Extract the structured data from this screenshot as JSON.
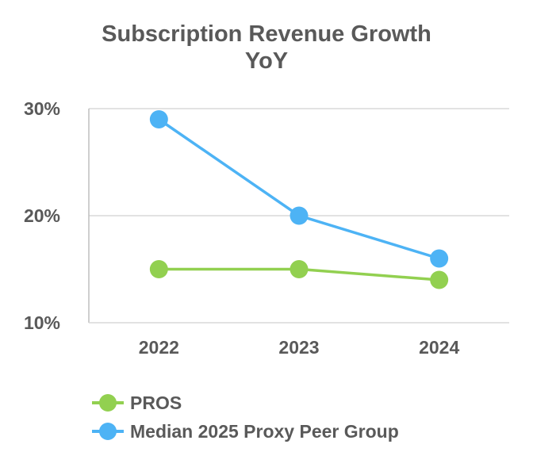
{
  "chart_data": {
    "type": "line",
    "title_lines": [
      "Subscription Revenue Growth",
      "YoY"
    ],
    "xlabel": "",
    "ylabel": "",
    "categories": [
      "2022",
      "2023",
      "2024"
    ],
    "ylim": [
      10,
      30
    ],
    "yticks": [
      10,
      20,
      30
    ],
    "ytick_labels": [
      "10%",
      "20%",
      "30%"
    ],
    "grid": true,
    "legend_position": "bottom-left",
    "series": [
      {
        "name": "PROS",
        "values": [
          15,
          15,
          14
        ],
        "color": "#92d050"
      },
      {
        "name": "Median 2025 Proxy Peer Group",
        "values": [
          29,
          20,
          16
        ],
        "color": "#4db3f5"
      }
    ]
  }
}
